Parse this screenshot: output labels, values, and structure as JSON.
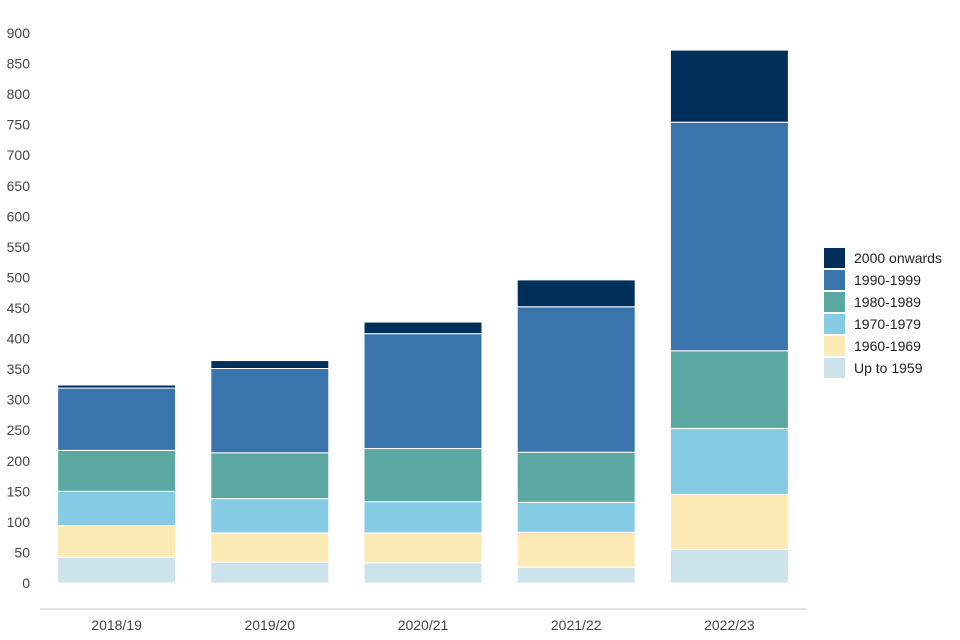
{
  "chart_data": {
    "type": "bar",
    "stacked": true,
    "title": "",
    "xlabel": "",
    "ylabel": "",
    "ylim": [
      0,
      900
    ],
    "yticks": [
      0,
      50,
      100,
      150,
      200,
      250,
      300,
      350,
      400,
      450,
      500,
      550,
      600,
      650,
      700,
      750,
      800,
      850,
      900
    ],
    "grid": false,
    "legend_position": "right",
    "categories": [
      "2018/19",
      "2019/20",
      "2020/21",
      "2021/22",
      "2022/23"
    ],
    "series": [
      {
        "name": "Up to 1959",
        "color": "#cde3ec",
        "values": [
          42,
          34,
          33,
          26,
          55
        ]
      },
      {
        "name": "1960-1969",
        "color": "#fde9b4",
        "values": [
          52,
          48,
          49,
          57,
          90
        ]
      },
      {
        "name": "1970-1979",
        "color": "#84cbe3",
        "values": [
          56,
          56,
          51,
          49,
          108
        ]
      },
      {
        "name": "1980-1989",
        "color": "#5ba8a3",
        "values": [
          67,
          75,
          87,
          82,
          127
        ]
      },
      {
        "name": "1990-1999",
        "color": "#3a74ad",
        "values": [
          102,
          138,
          188,
          238,
          374
        ]
      },
      {
        "name": "2000 onwards",
        "color": "#002f5c",
        "values": [
          5,
          13,
          19,
          44,
          118
        ]
      }
    ]
  }
}
